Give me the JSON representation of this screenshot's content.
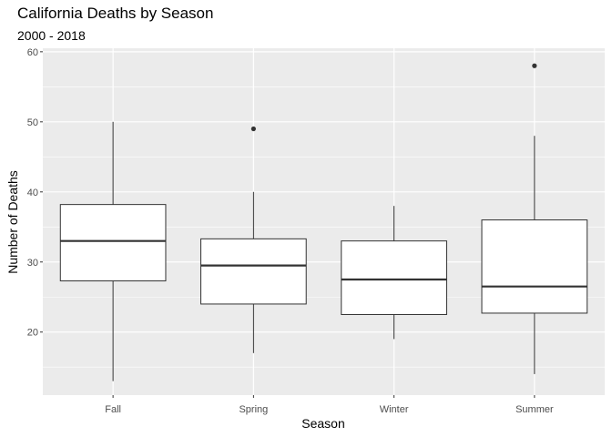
{
  "chart_data": {
    "type": "boxplot",
    "title": "California Deaths by Season",
    "subtitle": "2000 - 2018",
    "xlabel": "Season",
    "ylabel": "Number of Deaths",
    "ylim": [
      11,
      60.5
    ],
    "yticks": [
      20,
      30,
      40,
      50,
      60
    ],
    "grid": true,
    "categories": [
      "Fall",
      "Spring",
      "Winter",
      "Summer"
    ],
    "boxes": [
      {
        "category": "Fall",
        "min": 13,
        "q1": 27.3,
        "median": 33,
        "q3": 38.2,
        "max": 50,
        "outliers": []
      },
      {
        "category": "Spring",
        "min": 17,
        "q1": 24,
        "median": 29.5,
        "q3": 33.3,
        "max": 40,
        "outliers": [
          49
        ]
      },
      {
        "category": "Winter",
        "min": 19,
        "q1": 22.5,
        "median": 27.5,
        "q3": 33,
        "max": 38,
        "outliers": []
      },
      {
        "category": "Summer",
        "min": 14,
        "q1": 22.7,
        "median": 26.5,
        "q3": 36,
        "max": 48,
        "outliers": [
          58
        ]
      }
    ]
  }
}
